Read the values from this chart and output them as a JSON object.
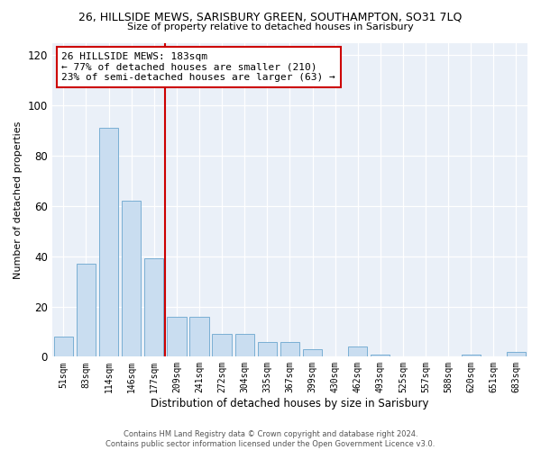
{
  "title": "26, HILLSIDE MEWS, SARISBURY GREEN, SOUTHAMPTON, SO31 7LQ",
  "subtitle": "Size of property relative to detached houses in Sarisbury",
  "xlabel": "Distribution of detached houses by size in Sarisbury",
  "ylabel": "Number of detached properties",
  "bar_labels": [
    "51sqm",
    "83sqm",
    "114sqm",
    "146sqm",
    "177sqm",
    "209sqm",
    "241sqm",
    "272sqm",
    "304sqm",
    "335sqm",
    "367sqm",
    "399sqm",
    "430sqm",
    "462sqm",
    "493sqm",
    "525sqm",
    "557sqm",
    "588sqm",
    "620sqm",
    "651sqm",
    "683sqm"
  ],
  "bar_values": [
    8,
    37,
    91,
    62,
    39,
    16,
    16,
    9,
    9,
    6,
    6,
    3,
    0,
    4,
    1,
    0,
    0,
    0,
    1,
    0,
    2
  ],
  "bar_color": "#c9ddf0",
  "bar_edgecolor": "#7aafd4",
  "ylim": [
    0,
    125
  ],
  "yticks": [
    0,
    20,
    40,
    60,
    80,
    100,
    120
  ],
  "vline_x_index": 4,
  "vline_color": "#cc0000",
  "annotation_title": "26 HILLSIDE MEWS: 183sqm",
  "annotation_line1": "← 77% of detached houses are smaller (210)",
  "annotation_line2": "23% of semi-detached houses are larger (63) →",
  "annotation_box_edgecolor": "#cc0000",
  "footnote1": "Contains HM Land Registry data © Crown copyright and database right 2024.",
  "footnote2": "Contains public sector information licensed under the Open Government Licence v3.0.",
  "bg_color": "#ffffff",
  "plot_bg_color": "#eaf0f8"
}
